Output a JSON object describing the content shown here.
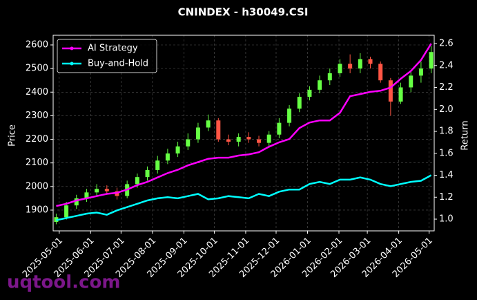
{
  "chart_data": {
    "type": "candlestick",
    "title": "CNINDEX - h30049.CSI",
    "ylabel": "Price",
    "y2label": "Return",
    "watermark": "uqtool.com",
    "x": [
      "2025-04-28",
      "2025-05-08",
      "2025-05-18",
      "2025-05-28",
      "2025-06-07",
      "2025-06-17",
      "2025-06-27",
      "2025-07-07",
      "2025-07-17",
      "2025-07-27",
      "2025-08-06",
      "2025-08-16",
      "2025-08-26",
      "2025-09-05",
      "2025-09-15",
      "2025-09-25",
      "2025-10-05",
      "2025-10-15",
      "2025-10-25",
      "2025-11-04",
      "2025-11-14",
      "2025-11-24",
      "2025-12-04",
      "2025-12-14",
      "2025-12-24",
      "2026-01-03",
      "2026-01-13",
      "2026-01-23",
      "2026-02-02",
      "2026-02-12",
      "2026-02-22",
      "2026-03-04",
      "2026-03-14",
      "2026-03-24",
      "2026-04-03",
      "2026-04-13",
      "2026-04-23",
      "2026-05-03"
    ],
    "candles": {
      "open": [
        1850,
        1870,
        1920,
        1950,
        1975,
        1990,
        1980,
        1960,
        2010,
        2040,
        2070,
        2110,
        2140,
        2170,
        2200,
        2250,
        2280,
        2200,
        2190,
        2210,
        2200,
        2185,
        2220,
        2270,
        2330,
        2380,
        2410,
        2450,
        2480,
        2520,
        2500,
        2540,
        2520,
        2450,
        2360,
        2420,
        2470,
        2500
      ],
      "high": [
        1885,
        1935,
        1965,
        1990,
        2010,
        2005,
        1995,
        2025,
        2055,
        2085,
        2130,
        2160,
        2190,
        2225,
        2270,
        2305,
        2290,
        2220,
        2225,
        2230,
        2215,
        2235,
        2290,
        2345,
        2395,
        2425,
        2470,
        2500,
        2540,
        2560,
        2565,
        2550,
        2530,
        2460,
        2440,
        2490,
        2530,
        2595
      ],
      "low": [
        1840,
        1860,
        1905,
        1935,
        1960,
        1970,
        1945,
        1950,
        1995,
        2025,
        2055,
        2095,
        2125,
        2155,
        2185,
        2235,
        2190,
        2175,
        2170,
        2185,
        2170,
        2170,
        2205,
        2255,
        2315,
        2365,
        2395,
        2430,
        2465,
        2480,
        2480,
        2500,
        2440,
        2300,
        2350,
        2400,
        2440,
        2480
      ],
      "close": [
        1870,
        1920,
        1950,
        1975,
        1990,
        1980,
        1960,
        2010,
        2040,
        2070,
        2110,
        2140,
        2170,
        2200,
        2250,
        2280,
        2200,
        2190,
        2210,
        2200,
        2185,
        2220,
        2270,
        2330,
        2380,
        2410,
        2450,
        2480,
        2520,
        2500,
        2540,
        2520,
        2450,
        2360,
        2420,
        2470,
        2500,
        2570
      ],
      "up_color": "#66ff44",
      "down_color": "#ff5544"
    },
    "series": [
      {
        "name": "AI Strategy",
        "color": "#ff00ff",
        "axis": "y2",
        "values": [
          1.12,
          1.14,
          1.17,
          1.19,
          1.21,
          1.23,
          1.24,
          1.27,
          1.31,
          1.34,
          1.38,
          1.42,
          1.45,
          1.49,
          1.52,
          1.55,
          1.56,
          1.56,
          1.58,
          1.59,
          1.61,
          1.66,
          1.7,
          1.73,
          1.83,
          1.88,
          1.9,
          1.9,
          1.97,
          2.12,
          2.14,
          2.16,
          2.17,
          2.2,
          2.28,
          2.35,
          2.45,
          2.6
        ]
      },
      {
        "name": "Buy-and-Hold",
        "color": "#00ffff",
        "axis": "y2",
        "values": [
          0.99,
          1.01,
          1.03,
          1.05,
          1.06,
          1.04,
          1.08,
          1.11,
          1.14,
          1.17,
          1.19,
          1.2,
          1.19,
          1.21,
          1.23,
          1.18,
          1.19,
          1.21,
          1.2,
          1.19,
          1.23,
          1.21,
          1.25,
          1.27,
          1.27,
          1.32,
          1.34,
          1.32,
          1.36,
          1.36,
          1.38,
          1.36,
          1.32,
          1.3,
          1.32,
          1.34,
          1.35,
          1.4
        ]
      }
    ],
    "xlim": [
      "2025-04-25",
      "2026-05-06"
    ],
    "xticks": [
      "2025-05-01",
      "2025-06-01",
      "2025-07-01",
      "2025-08-01",
      "2025-09-01",
      "2025-10-01",
      "2025-11-01",
      "2025-12-01",
      "2026-01-01",
      "2026-02-01",
      "2026-03-01",
      "2026-04-01",
      "2026-05-01"
    ],
    "ylim": [
      1812,
      2641
    ],
    "yticks": [
      1900,
      2000,
      2100,
      2200,
      2300,
      2400,
      2500,
      2600
    ],
    "y2lim": [
      0.893,
      2.676
    ],
    "y2ticks": [
      {
        "value": 1.0,
        "label": "1.0"
      },
      {
        "value": 1.2,
        "label": "1.2"
      },
      {
        "value": 1.4,
        "label": "1.4"
      },
      {
        "value": 1.6,
        "label": "1.6"
      },
      {
        "value": 1.8,
        "label": "1.8"
      },
      {
        "value": 2.0,
        "label": "2.0"
      },
      {
        "value": 2.2,
        "label": "2.2"
      },
      {
        "value": 2.4,
        "label": "2.4"
      },
      {
        "value": 2.6,
        "label": "2.6"
      }
    ],
    "grid": true,
    "legend": "upper left"
  }
}
